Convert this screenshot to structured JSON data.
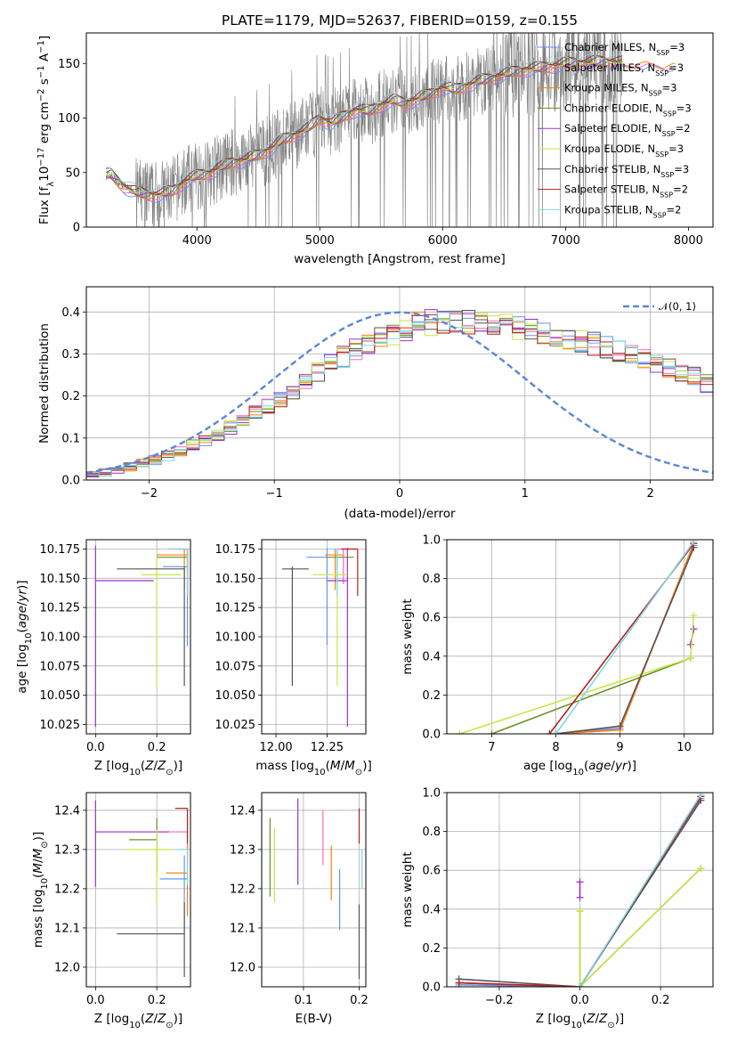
{
  "colors": {
    "chabrier_miles": "#6495ed",
    "salpeter_miles": "#ff69b4",
    "kroupa_miles": "#ff7f0e",
    "chabrier_elodie": "#6b8e23",
    "salpeter_elodie": "#9932cc",
    "kroupa_elodie": "#c8e64a",
    "chabrier_stelib": "#555555",
    "salpeter_stelib": "#b22222",
    "kroupa_stelib": "#7fd8e6",
    "normal": "#5b87d6",
    "spectrum": "#808080"
  },
  "title": "PLATE=1179, MJD=52637, FIBERID=0159, z=0.155",
  "legend_entries": [
    {
      "key": "chabrier_miles",
      "text": "Chabrier MILES, N",
      "sub": "SSP",
      "tail": "=3"
    },
    {
      "key": "salpeter_miles",
      "text": "Salpeter MILES, N",
      "sub": "SSP",
      "tail": "=3"
    },
    {
      "key": "kroupa_miles",
      "text": "Kroupa MILES, N",
      "sub": "SSP",
      "tail": "=3"
    },
    {
      "key": "chabrier_elodie",
      "text": "Chabrier ELODIE, N",
      "sub": "SSP",
      "tail": "=3"
    },
    {
      "key": "salpeter_elodie",
      "text": "Salpeter ELODIE, N",
      "sub": "SSP",
      "tail": "=2"
    },
    {
      "key": "kroupa_elodie",
      "text": "Kroupa ELODIE, N",
      "sub": "SSP",
      "tail": "=3"
    },
    {
      "key": "chabrier_stelib",
      "text": "Chabrier STELIB, N",
      "sub": "SSP",
      "tail": "=3"
    },
    {
      "key": "salpeter_stelib",
      "text": "Salpeter STELIB, N",
      "sub": "SSP",
      "tail": "=2"
    },
    {
      "key": "kroupa_stelib",
      "text": "Kroupa STELIB, N",
      "sub": "SSP",
      "tail": "=2"
    }
  ],
  "chart_data": [
    {
      "id": "spectrum",
      "type": "line",
      "xlabel": "wavelength [Angstrom, rest frame]",
      "ylabel": "Flux [f_λ 10^-17 erg cm^-2 s^-1 A^-1]",
      "xlim": [
        3100,
        8200
      ],
      "ylim": [
        0,
        178
      ],
      "xticks": [
        4000,
        5000,
        6000,
        7000,
        8000
      ],
      "yticks": [
        0,
        50,
        100,
        150
      ],
      "x": [
        3300,
        3400,
        3500,
        3600,
        3700,
        3800,
        3900,
        4000,
        4100,
        4200,
        4300,
        4400,
        4500,
        4600,
        4700,
        4800,
        4900,
        5000,
        5100,
        5200,
        5300,
        5400,
        5500,
        5600,
        5700,
        5800,
        5900,
        6000,
        6100,
        6200,
        6300,
        6400,
        6500,
        6600,
        6700,
        6800,
        6900,
        7000,
        7100,
        7200,
        7300,
        7400,
        7500,
        7600,
        7700,
        7800,
        7900
      ],
      "model_mean": [
        48,
        38,
        32,
        30,
        30,
        33,
        42,
        47,
        50,
        55,
        60,
        62,
        66,
        72,
        80,
        85,
        90,
        100,
        95,
        102,
        108,
        106,
        112,
        116,
        114,
        118,
        122,
        128,
        126,
        130,
        134,
        137,
        140,
        143,
        145,
        146,
        148,
        150,
        151,
        151,
        152,
        152,
        150,
        152,
        151,
        150,
        150
      ],
      "data_noisy_range": [
        3500,
        7450
      ]
    },
    {
      "id": "residual-hist",
      "type": "histogram",
      "xlabel": "(data-model)/error",
      "ylabel": "Normed distribution",
      "xlim": [
        -2.5,
        2.5
      ],
      "ylim": [
        0,
        0.46
      ],
      "xticks": [
        -2,
        -1,
        0,
        1,
        2
      ],
      "yticks": [
        0.0,
        0.1,
        0.2,
        0.3,
        0.4
      ],
      "legend_label": "𝒩(0, 1)",
      "bin_width": 0.1,
      "bin_start": -2.5,
      "base_density": [
        0.012,
        0.018,
        0.025,
        0.032,
        0.04,
        0.048,
        0.058,
        0.07,
        0.082,
        0.095,
        0.11,
        0.125,
        0.14,
        0.158,
        0.175,
        0.195,
        0.215,
        0.235,
        0.255,
        0.275,
        0.295,
        0.31,
        0.325,
        0.338,
        0.35,
        0.36,
        0.37,
        0.375,
        0.378,
        0.38,
        0.375,
        0.37,
        0.368,
        0.366,
        0.36,
        0.355,
        0.35,
        0.345,
        0.34,
        0.33,
        0.325,
        0.315,
        0.305,
        0.295,
        0.285,
        0.275,
        0.265,
        0.255,
        0.245,
        0.23,
        0.215,
        0.2,
        0.18,
        0.16,
        0.145,
        0.13,
        0.115,
        0.1,
        0.09,
        0.08,
        0.07,
        0.062,
        0.055,
        0.048,
        0.045,
        0.04,
        0.038,
        0.035,
        0.032,
        0.03,
        0.028,
        0.025,
        0.023,
        0.02,
        0.018,
        0.016,
        0.015,
        0.013,
        0.012,
        0.01
      ],
      "normal": {
        "mean": 0,
        "sigma": 1
      }
    },
    {
      "id": "age-vs-Z",
      "type": "errorbar",
      "xlabel": "Z [log10(Z/Z_sun)]",
      "ylabel": "age [log10(age/yr)]",
      "xlim": [
        -0.03,
        0.31
      ],
      "ylim": [
        10.017,
        10.183
      ],
      "xticks": [
        0.0,
        0.2
      ],
      "yticks": [
        10.025,
        10.05,
        10.075,
        10.1,
        10.125,
        10.15,
        10.175
      ],
      "points": [
        {
          "key": "chabrier_miles",
          "x": 0.3,
          "y": 10.16,
          "xerr": [
            0.08,
            0.0
          ],
          "yerr": [
            0.068,
            0.0
          ]
        },
        {
          "key": "salpeter_miles",
          "x": 0.3,
          "y": 10.175,
          "xerr": [
            0.06,
            0.0
          ],
          "yerr": [
            0.02,
            0.0
          ]
        },
        {
          "key": "kroupa_miles",
          "x": 0.29,
          "y": 10.17,
          "xerr": [
            0.09,
            0.01
          ],
          "yerr": [
            0.03,
            0.005
          ]
        },
        {
          "key": "chabrier_elodie",
          "x": 0.3,
          "y": 10.168,
          "xerr": [
            0.1,
            0.0
          ],
          "yerr": [
            0.01,
            0.005
          ]
        },
        {
          "key": "salpeter_elodie",
          "x": 0.0,
          "y": 10.148,
          "xerr": [
            0.0,
            0.19
          ],
          "yerr": [
            0.125,
            0.03
          ]
        },
        {
          "key": "kroupa_elodie",
          "x": 0.2,
          "y": 10.153,
          "xerr": [
            0.05,
            0.08
          ],
          "yerr": [
            0.095,
            0.015
          ]
        },
        {
          "key": "chabrier_stelib",
          "x": 0.29,
          "y": 10.158,
          "xerr": [
            0.22,
            0.0
          ],
          "yerr": [
            0.1,
            0.002
          ]
        },
        {
          "key": "salpeter_stelib",
          "x": 0.3,
          "y": 10.175,
          "xerr": [
            0.03,
            0.0
          ],
          "yerr": [
            0.04,
            0.0
          ]
        },
        {
          "key": "kroupa_stelib",
          "x": 0.3,
          "y": 10.175,
          "xerr": [
            0.06,
            0.0
          ],
          "yerr": [
            0.04,
            0.0
          ]
        }
      ]
    },
    {
      "id": "age-vs-mass",
      "type": "errorbar",
      "xlabel": "mass [log10(M/M_sun)]",
      "ylabel": "",
      "xlim": [
        11.93,
        12.44
      ],
      "ylim": [
        10.017,
        10.183
      ],
      "xticks": [
        12.0,
        12.25
      ],
      "yticks": [
        10.025,
        10.05,
        10.075,
        10.1,
        10.125,
        10.15,
        10.175
      ],
      "points": [
        {
          "key": "chabrier_miles",
          "x": 12.25,
          "y": 10.168,
          "xerr": [
            0.1,
            0.0
          ],
          "yerr": [
            0.075,
            0.008
          ]
        },
        {
          "key": "salpeter_miles",
          "x": 12.33,
          "y": 10.175,
          "xerr": [
            0.05,
            0.07
          ],
          "yerr": [
            0.03,
            0.0
          ]
        },
        {
          "key": "kroupa_miles",
          "x": 12.29,
          "y": 10.17,
          "xerr": [
            0.05,
            0.04
          ],
          "yerr": [
            0.03,
            0.005
          ]
        },
        {
          "key": "chabrier_elodie",
          "x": 12.3,
          "y": 10.168,
          "xerr": [
            0.05,
            0.08
          ],
          "yerr": [
            0.01,
            0.005
          ]
        },
        {
          "key": "salpeter_elodie",
          "x": 12.35,
          "y": 10.148,
          "xerr": [
            0.1,
            0.0
          ],
          "yerr": [
            0.125,
            0.028
          ]
        },
        {
          "key": "kroupa_elodie",
          "x": 12.3,
          "y": 10.153,
          "xerr": [
            0.12,
            0.05
          ],
          "yerr": [
            0.095,
            0.02
          ]
        },
        {
          "key": "chabrier_stelib",
          "x": 12.08,
          "y": 10.158,
          "xerr": [
            0.05,
            0.08
          ],
          "yerr": [
            0.1,
            0.002
          ]
        },
        {
          "key": "salpeter_stelib",
          "x": 12.4,
          "y": 10.175,
          "xerr": [
            0.08,
            0.0
          ],
          "yerr": [
            0.04,
            0.0
          ]
        },
        {
          "key": "kroupa_stelib",
          "x": 12.3,
          "y": 10.175,
          "xerr": [
            0.05,
            0.0
          ],
          "yerr": [
            0.04,
            0.0
          ]
        }
      ]
    },
    {
      "id": "weight-vs-age",
      "type": "line",
      "xlabel": "age [log10(age/yr)]",
      "ylabel": "mass weight",
      "xlim": [
        6.3,
        10.45
      ],
      "ylim": [
        0,
        1.0
      ],
      "xticks": [
        7,
        8,
        9,
        10
      ],
      "yticks": [
        0.0,
        0.2,
        0.4,
        0.6,
        0.8,
        1.0
      ],
      "series": [
        {
          "key": "chabrier_miles",
          "x": [
            8.0,
            9.0,
            10.15
          ],
          "y": [
            0.0,
            0.03,
            0.97
          ]
        },
        {
          "key": "salpeter_miles",
          "x": [
            8.0,
            9.0,
            10.15
          ],
          "y": [
            0.0,
            0.02,
            0.98
          ]
        },
        {
          "key": "kroupa_miles",
          "x": [
            7.9,
            9.0,
            10.15
          ],
          "y": [
            0.0,
            0.02,
            0.98
          ]
        },
        {
          "key": "chabrier_elodie",
          "x": [
            7.0,
            10.1
          ],
          "y": [
            0.0,
            0.39
          ]
        },
        {
          "key": "salpeter_elodie",
          "x": [
            10.1,
            10.15
          ],
          "y": [
            0.46,
            0.54
          ]
        },
        {
          "key": "kroupa_elodie",
          "x": [
            6.5,
            10.1,
            10.15
          ],
          "y": [
            0.0,
            0.39,
            0.61
          ]
        },
        {
          "key": "chabrier_stelib",
          "x": [
            8.0,
            9.0,
            10.15
          ],
          "y": [
            0.0,
            0.04,
            0.96
          ]
        },
        {
          "key": "salpeter_stelib",
          "x": [
            7.9,
            10.15
          ],
          "y": [
            0.0,
            0.98
          ]
        },
        {
          "key": "kroupa_stelib",
          "x": [
            8.0,
            10.15
          ],
          "y": [
            0.0,
            0.99
          ]
        }
      ]
    },
    {
      "id": "mass-vs-Z",
      "type": "errorbar",
      "xlabel": "Z [log10(Z/Z_sun)]",
      "ylabel": "mass [log10(M/M_sun)]",
      "xlim": [
        -0.03,
        0.31
      ],
      "ylim": [
        11.95,
        12.445
      ],
      "xticks": [
        0.0,
        0.2
      ],
      "yticks": [
        12.0,
        12.1,
        12.2,
        12.3,
        12.4
      ],
      "points": [
        {
          "key": "chabrier_miles",
          "x": 0.29,
          "y": 12.225,
          "xerr": [
            0.08,
            0.01
          ],
          "yerr": [
            0.13,
            0.06
          ]
        },
        {
          "key": "salpeter_miles",
          "x": 0.3,
          "y": 12.345,
          "xerr": [
            0.09,
            0.0
          ],
          "yerr": [
            0.08,
            0.04
          ]
        },
        {
          "key": "kroupa_miles",
          "x": 0.3,
          "y": 12.24,
          "xerr": [
            0.07,
            0.0
          ],
          "yerr": [
            0.11,
            0.07
          ]
        },
        {
          "key": "chabrier_elodie",
          "x": 0.2,
          "y": 12.325,
          "xerr": [
            0.09,
            0.0
          ],
          "yerr": [
            0.08,
            0.055
          ]
        },
        {
          "key": "salpeter_elodie",
          "x": 0.0,
          "y": 12.345,
          "xerr": [
            0.0,
            0.24
          ],
          "yerr": [
            0.14,
            0.08
          ]
        },
        {
          "key": "kroupa_elodie",
          "x": 0.2,
          "y": 12.3,
          "xerr": [
            0.1,
            0.05
          ],
          "yerr": [
            0.14,
            0.05
          ]
        },
        {
          "key": "chabrier_stelib",
          "x": 0.29,
          "y": 12.085,
          "xerr": [
            0.22,
            0.0
          ],
          "yerr": [
            0.11,
            0.08
          ]
        },
        {
          "key": "salpeter_stelib",
          "x": 0.3,
          "y": 12.405,
          "xerr": [
            0.04,
            0.0
          ],
          "yerr": [
            0.09,
            0.0
          ]
        },
        {
          "key": "kroupa_stelib",
          "x": 0.3,
          "y": 12.3,
          "xerr": [
            0.04,
            0.0
          ],
          "yerr": [
            0.09,
            0.0
          ]
        }
      ]
    },
    {
      "id": "mass-vs-ebv",
      "type": "errorbar",
      "xlabel": "E(B-V)",
      "ylabel": "",
      "xlim": [
        0.025,
        0.212
      ],
      "ylim": [
        11.95,
        12.445
      ],
      "xticks": [
        0.1,
        0.2
      ],
      "yticks": [
        12.0,
        12.1,
        12.2,
        12.3,
        12.4
      ],
      "points": [
        {
          "key": "chabrier_miles",
          "x": 0.165,
          "y": 12.17,
          "xerr": [
            0.0,
            0.0
          ],
          "yerr": [
            0.075,
            0.08
          ]
        },
        {
          "key": "salpeter_miles",
          "x": 0.135,
          "y": 12.33,
          "xerr": [
            0.0,
            0.0
          ],
          "yerr": [
            0.07,
            0.07
          ]
        },
        {
          "key": "kroupa_miles",
          "x": 0.15,
          "y": 12.24,
          "xerr": [
            0.0,
            0.0
          ],
          "yerr": [
            0.07,
            0.07
          ]
        },
        {
          "key": "chabrier_elodie",
          "x": 0.04,
          "y": 12.28,
          "xerr": [
            0.0,
            0.0
          ],
          "yerr": [
            0.1,
            0.1
          ]
        },
        {
          "key": "salpeter_elodie",
          "x": 0.09,
          "y": 12.32,
          "xerr": [
            0.0,
            0.0
          ],
          "yerr": [
            0.11,
            0.11
          ]
        },
        {
          "key": "kroupa_elodie",
          "x": 0.048,
          "y": 12.26,
          "xerr": [
            0.0,
            0.0
          ],
          "yerr": [
            0.095,
            0.095
          ]
        },
        {
          "key": "chabrier_stelib",
          "x": 0.2,
          "y": 12.065,
          "xerr": [
            0.0,
            0.0
          ],
          "yerr": [
            0.095,
            0.095
          ]
        },
        {
          "key": "salpeter_stelib",
          "x": 0.2,
          "y": 12.36,
          "xerr": [
            0.0,
            0.0
          ],
          "yerr": [
            0.045,
            0.045
          ]
        },
        {
          "key": "kroupa_stelib",
          "x": 0.205,
          "y": 12.25,
          "xerr": [
            0.0,
            0.0
          ],
          "yerr": [
            0.05,
            0.05
          ]
        }
      ]
    },
    {
      "id": "weight-vs-Z",
      "type": "line",
      "xlabel": "Z [log10(Z/Z_sun)]",
      "ylabel": "mass weight",
      "xlim": [
        -0.33,
        0.33
      ],
      "ylim": [
        0,
        1.0
      ],
      "xticks": [
        -0.2,
        0.0,
        0.2
      ],
      "yticks": [
        0.0,
        0.2,
        0.4,
        0.6,
        0.8,
        1.0
      ],
      "series": [
        {
          "key": "chabrier_miles",
          "x": [
            -0.3,
            0.0,
            0.3
          ],
          "y": [
            0.01,
            0.0,
            0.97
          ]
        },
        {
          "key": "salpeter_miles",
          "x": [
            -0.3,
            0.0,
            0.3
          ],
          "y": [
            0.02,
            0.0,
            0.98
          ]
        },
        {
          "key": "kroupa_miles",
          "x": [
            -0.3,
            0.0,
            0.3
          ],
          "y": [
            0.02,
            0.0,
            0.98
          ]
        },
        {
          "key": "chabrier_elodie",
          "x": [
            0.0,
            0.0,
            0.3
          ],
          "y": [
            0.39,
            0.0,
            0.61
          ]
        },
        {
          "key": "salpeter_elodie",
          "x": [
            0.0,
            0.0
          ],
          "y": [
            0.46,
            0.54
          ]
        },
        {
          "key": "kroupa_elodie",
          "x": [
            0.0,
            0.0,
            0.3
          ],
          "y": [
            0.39,
            0.0,
            0.61
          ]
        },
        {
          "key": "chabrier_stelib",
          "x": [
            -0.3,
            0.0,
            0.3
          ],
          "y": [
            0.04,
            0.0,
            0.96
          ]
        },
        {
          "key": "salpeter_stelib",
          "x": [
            -0.3,
            0.0,
            0.3
          ],
          "y": [
            0.02,
            0.0,
            0.98
          ]
        },
        {
          "key": "kroupa_stelib",
          "x": [
            0.0,
            0.3
          ],
          "y": [
            0.0,
            0.99
          ]
        }
      ]
    }
  ]
}
